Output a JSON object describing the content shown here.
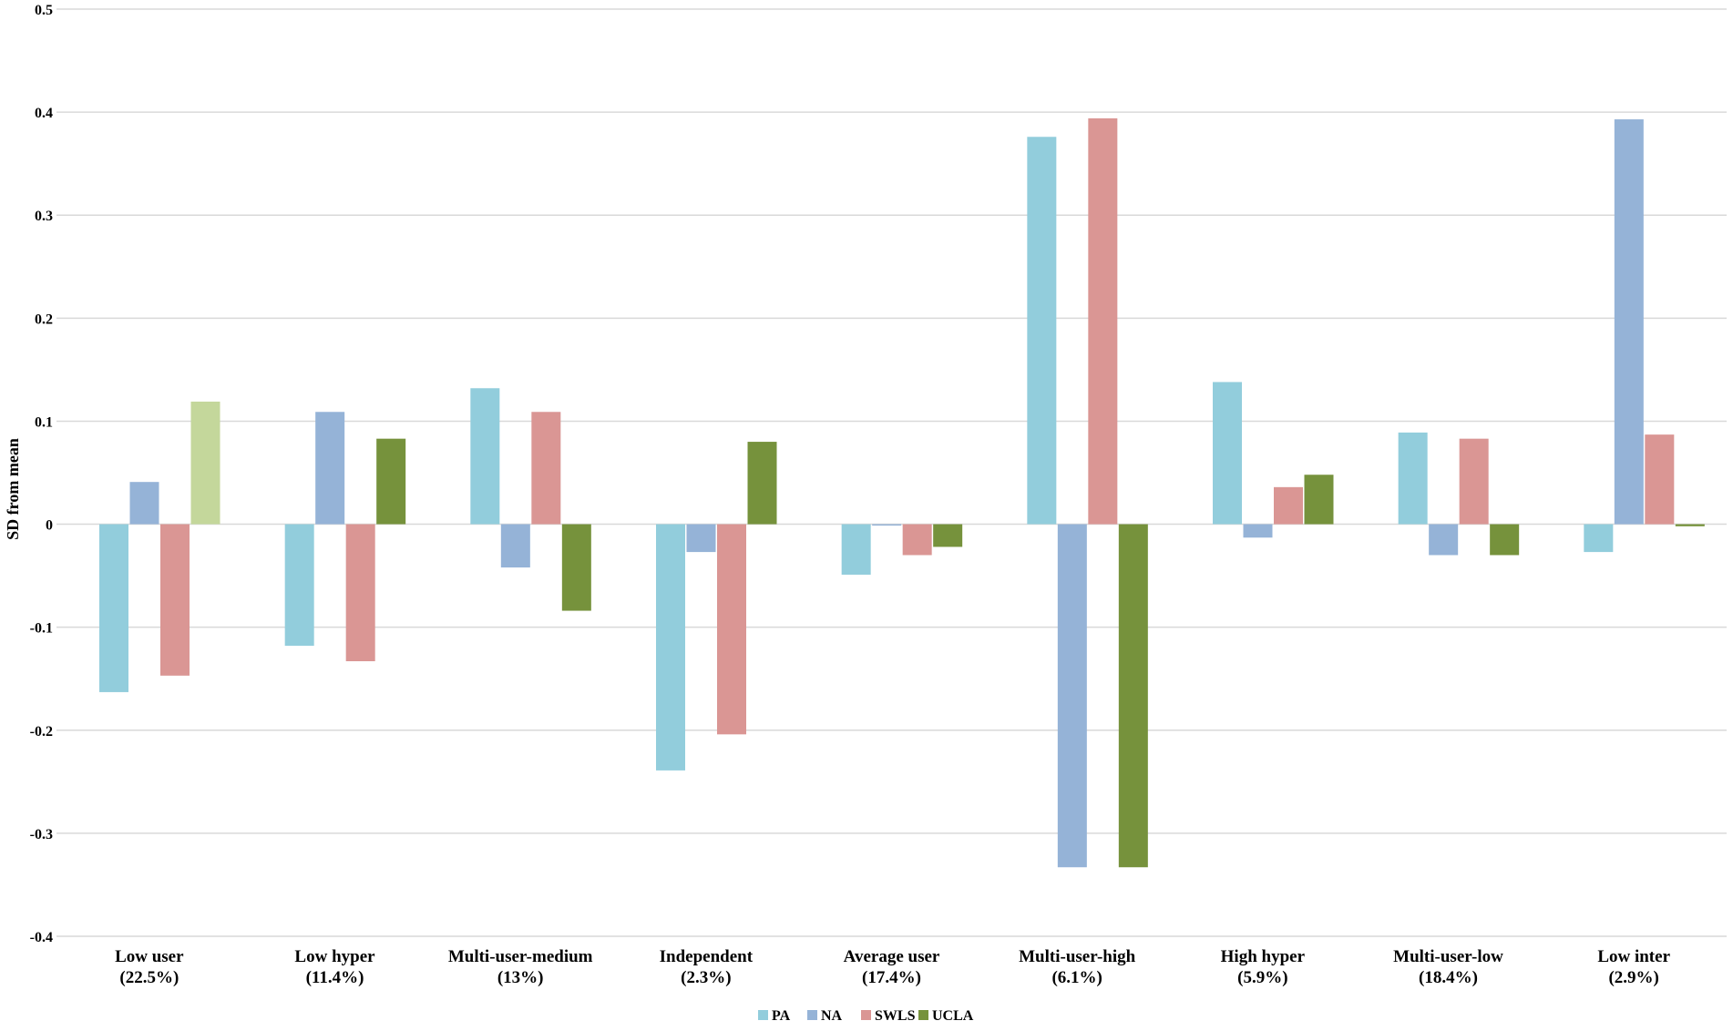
{
  "chart_data": {
    "type": "bar",
    "title": "",
    "xlabel": "",
    "ylabel": "SD from mean",
    "ylim": [
      -0.4,
      0.5
    ],
    "yticks": [
      -0.4,
      -0.3,
      -0.2,
      -0.1,
      0,
      0.1,
      0.2,
      0.3,
      0.4,
      0.5
    ],
    "ytick_labels": [
      "-0.4",
      "-0.3",
      "-0.2",
      "-0.1",
      "0",
      "0.1",
      "0.2",
      "0.3",
      "0.4",
      "0.5"
    ],
    "grid": true,
    "legend_position": "bottom",
    "categories": [
      [
        "Low user",
        "(22.5%)"
      ],
      [
        "Low hyper",
        "(11.4%)"
      ],
      [
        "Multi-user-medium",
        "(13%)"
      ],
      [
        "Independent",
        "(2.3%)"
      ],
      [
        "Average user",
        "(17.4%)"
      ],
      [
        "Multi-user-high",
        "(6.1%)"
      ],
      [
        "High hyper",
        "(5.9%)"
      ],
      [
        "Multi-user-low",
        "(18.4%)"
      ],
      [
        "Low inter",
        "(2.9%)"
      ]
    ],
    "series": [
      {
        "name": "PA",
        "color": "#92cddc",
        "values": [
          -0.163,
          -0.118,
          0.132,
          -0.239,
          -0.049,
          0.376,
          0.138,
          0.089,
          -0.027
        ]
      },
      {
        "name": "NA",
        "color": "#95b3d7",
        "values": [
          0.041,
          0.109,
          -0.042,
          -0.027,
          0.0,
          -0.333,
          -0.013,
          -0.03,
          0.393
        ]
      },
      {
        "name": "SWLS",
        "color": "#da9694",
        "values": [
          -0.147,
          -0.133,
          0.109,
          -0.204,
          -0.03,
          0.394,
          0.036,
          0.083,
          0.087
        ]
      },
      {
        "name": "UCLA",
        "color": "#76923c",
        "values": [
          0.119,
          0.083,
          -0.084,
          0.08,
          -0.022,
          -0.333,
          0.048,
          -0.03,
          -0.002
        ]
      }
    ],
    "highlighted_bar": {
      "series": "UCLA",
      "category_index": 0,
      "color": "#c4d79b"
    }
  }
}
